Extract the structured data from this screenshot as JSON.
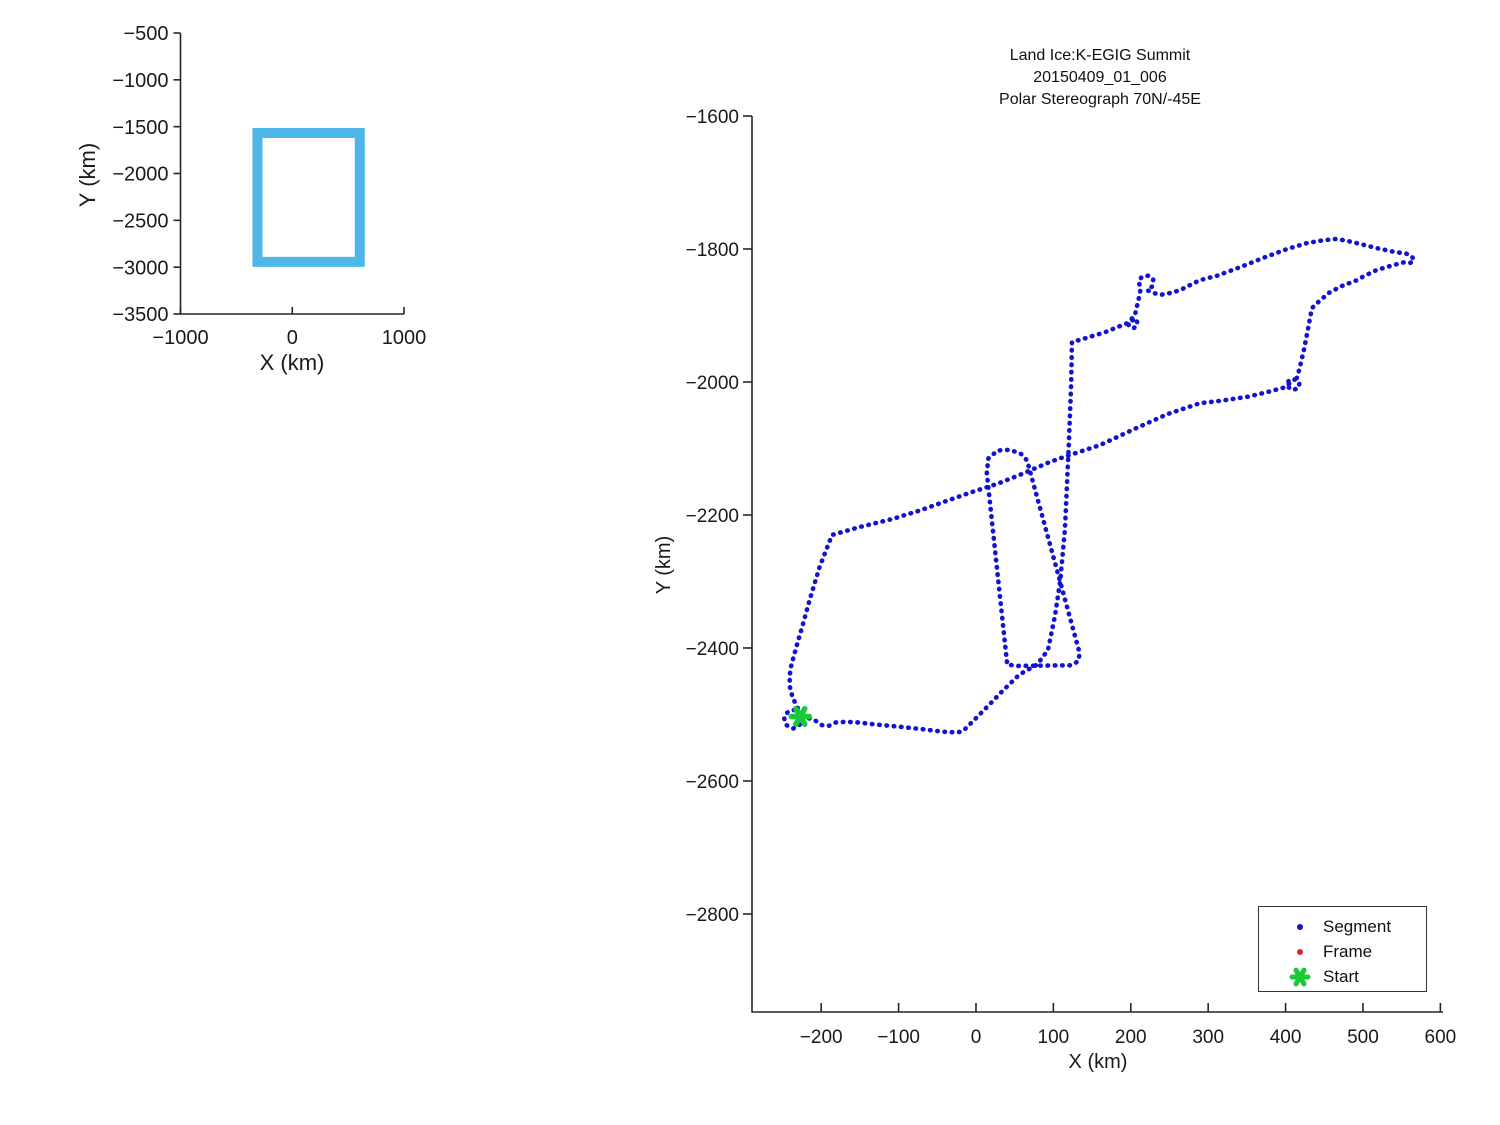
{
  "chart_data": [
    {
      "id": "overview",
      "type": "line",
      "title": "",
      "xlabel": "X (km)",
      "ylabel": "Y (km)",
      "xlim": [
        -1000,
        1000
      ],
      "ylim": [
        -3500,
        -500
      ],
      "xticks": [
        -1000,
        0,
        1000
      ],
      "yticks": [
        -500,
        -1000,
        -1500,
        -2000,
        -2500,
        -3000,
        -3500
      ],
      "grid": false,
      "series": [
        {
          "name": "coverage-box",
          "color": "#4db8e8",
          "linewidth": 10,
          "closed": true,
          "points": [
            [
              -311,
              -1567
            ],
            [
              604,
              -1567
            ],
            [
              604,
              -2944
            ],
            [
              -311,
              -2944
            ]
          ]
        }
      ]
    },
    {
      "id": "flight",
      "type": "line",
      "title": [
        "Land Ice:K-EGIG Summit",
        "20150409_01_006",
        "Polar Stereograph 70N/-45E"
      ],
      "xlabel": "X (km)",
      "ylabel": "Y (km)",
      "xlim": [
        -289.4,
        603.4
      ],
      "ylim": [
        -2947.4,
        -1600
      ],
      "xticks": [
        -200,
        -100,
        0,
        100,
        200,
        300,
        400,
        500,
        600
      ],
      "yticks": [
        -1600,
        -1800,
        -2000,
        -2200,
        -2400,
        -2600,
        -2800
      ],
      "grid": false,
      "series": [
        {
          "name": "Segment",
          "style": "dotted",
          "color": "#1212d4",
          "segments": [
            [
              [
                -227,
                -2499
              ],
              [
                -234,
                -2493
              ],
              [
                -243,
                -2496
              ],
              [
                -248,
                -2505
              ],
              [
                -245,
                -2516
              ],
              [
                -236,
                -2521
              ],
              [
                -228,
                -2516
              ],
              [
                -226,
                -2506
              ],
              [
                -218,
                -2505
              ],
              [
                -209,
                -2508
              ],
              [
                -199,
                -2516
              ],
              [
                -190,
                -2517
              ],
              [
                -181,
                -2512
              ],
              [
                -168,
                -2511
              ],
              [
                -152,
                -2512
              ],
              [
                -130,
                -2515
              ],
              [
                -102,
                -2518
              ],
              [
                -70,
                -2522
              ],
              [
                -42,
                -2526
              ],
              [
                -24,
                -2527
              ],
              [
                -17,
                -2525
              ],
              [
                -2,
                -2508
              ],
              [
                14,
                -2489
              ],
              [
                34,
                -2465
              ],
              [
                56,
                -2440
              ],
              [
                79,
                -2425
              ],
              [
                93,
                -2403
              ],
              [
                102,
                -2352
              ],
              [
                109,
                -2298
              ],
              [
                115,
                -2220
              ],
              [
                120,
                -2092
              ],
              [
                123,
                -2002
              ],
              [
                124,
                -1940
              ],
              [
                142,
                -1934
              ],
              [
                167,
                -1925
              ],
              [
                188,
                -1915
              ],
              [
                199,
                -1910
              ],
              [
                206,
                -1904
              ],
              [
                209,
                -1912
              ],
              [
                204,
                -1919
              ],
              [
                197,
                -1915
              ],
              [
                199,
                -1907
              ],
              [
                205,
                -1901
              ],
              [
                208,
                -1886
              ],
              [
                211,
                -1871
              ],
              [
                213,
                -1858
              ],
              [
                210,
                -1850
              ],
              [
                214,
                -1842
              ],
              [
                223,
                -1840
              ],
              [
                229,
                -1846
              ],
              [
                228,
                -1856
              ],
              [
                221,
                -1862
              ],
              [
                229,
                -1866
              ],
              [
                238,
                -1869
              ],
              [
                248,
                -1867
              ],
              [
                258,
                -1864
              ],
              [
                267,
                -1860
              ],
              [
                277,
                -1854
              ],
              [
                289,
                -1847
              ],
              [
                312,
                -1840
              ],
              [
                342,
                -1827
              ],
              [
                372,
                -1813
              ],
              [
                402,
                -1800
              ],
              [
                428,
                -1791
              ],
              [
                448,
                -1787
              ],
              [
                464,
                -1785
              ],
              [
                477,
                -1787
              ],
              [
                498,
                -1793
              ],
              [
                519,
                -1799
              ],
              [
                539,
                -1804
              ],
              [
                556,
                -1807
              ],
              [
                563,
                -1811
              ],
              [
                566,
                -1817
              ],
              [
                561,
                -1821
              ],
              [
                553,
                -1820
              ],
              [
                537,
                -1825
              ],
              [
                517,
                -1832
              ],
              [
                501,
                -1841
              ],
              [
                492,
                -1847
              ],
              [
                472,
                -1856
              ],
              [
                456,
                -1866
              ],
              [
                443,
                -1879
              ],
              [
                434,
                -1889
              ],
              [
                429,
                -1920
              ],
              [
                424,
                -1950
              ],
              [
                418,
                -1980
              ],
              [
                414,
                -1996
              ],
              [
                418,
                -2002
              ],
              [
                416,
                -2010
              ],
              [
                408,
                -2012
              ],
              [
                402,
                -2006
              ],
              [
                404,
                -1998
              ],
              [
                412,
                -1996
              ],
              [
                399,
                -2008
              ],
              [
                377,
                -2015
              ],
              [
                352,
                -2022
              ],
              [
                318,
                -2028
              ],
              [
                289,
                -2032
              ],
              [
                248,
                -2048
              ],
              [
                206,
                -2070
              ],
              [
                160,
                -2095
              ],
              [
                118,
                -2111
              ],
              [
                96,
                -2120
              ],
              [
                58,
                -2139
              ],
              [
                28,
                -2153
              ],
              [
                -4,
                -2165
              ],
              [
                -36,
                -2178
              ],
              [
                -72,
                -2193
              ],
              [
                -108,
                -2206
              ],
              [
                -150,
                -2218
              ],
              [
                -186,
                -2230
              ],
              [
                -202,
                -2278
              ],
              [
                -215,
                -2328
              ],
              [
                -224,
                -2366
              ],
              [
                -232,
                -2398
              ],
              [
                -240,
                -2432
              ],
              [
                -241,
                -2456
              ],
              [
                -237,
                -2474
              ],
              [
                -231,
                -2489
              ],
              [
                -227,
                -2499
              ]
            ],
            [
              [
                40,
                -2421
              ],
              [
                14,
                -2137
              ],
              [
                16,
                -2115
              ],
              [
                28,
                -2103
              ],
              [
                44,
                -2102
              ],
              [
                58,
                -2108
              ],
              [
                66,
                -2118
              ],
              [
                134,
                -2408
              ],
              [
                132,
                -2420
              ],
              [
                123,
                -2426
              ],
              [
                52,
                -2427
              ],
              [
                42,
                -2425
              ],
              [
                40,
                -2421
              ]
            ]
          ]
        },
        {
          "name": "Frame",
          "style": "dotted",
          "color": "#e02424",
          "segments": []
        },
        {
          "name": "Start",
          "marker": "asterisk",
          "color": "#17cb38",
          "points": [
            [
              -227,
              -2503
            ]
          ]
        }
      ],
      "legend": {
        "position": "lower right",
        "entries": [
          {
            "label": "Segment",
            "marker": "dot",
            "color": "#1212d4"
          },
          {
            "label": "Frame",
            "marker": "dot",
            "color": "#e02424"
          },
          {
            "label": "Start",
            "marker": "asterisk",
            "color": "#17cb38"
          }
        ]
      }
    }
  ],
  "colors": {
    "axis": "#262626",
    "text": "#1a1a1a",
    "background": "#ffffff"
  }
}
